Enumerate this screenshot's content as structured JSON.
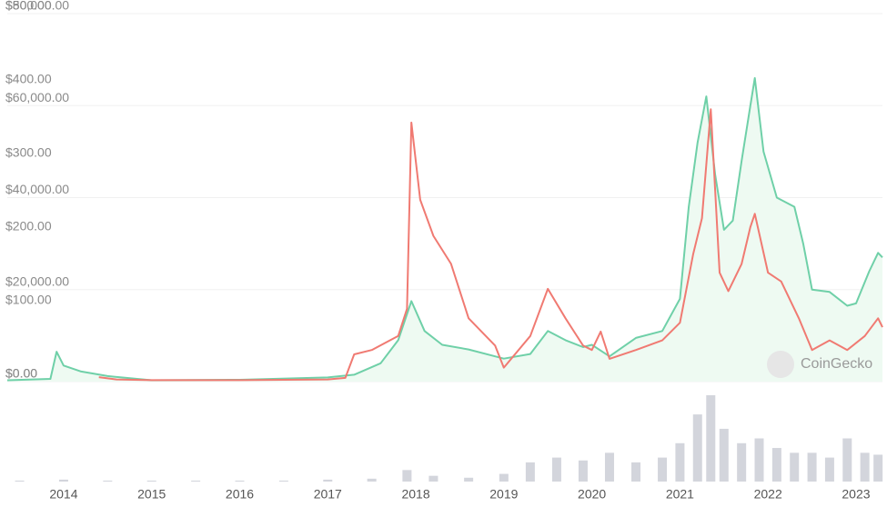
{
  "chart_data": {
    "type": "line",
    "xlim": [
      2013.36,
      2023.3
    ],
    "xticks": [
      2014,
      2015,
      2016,
      2017,
      2018,
      2019,
      2020,
      2021,
      2022,
      2023
    ],
    "ylim": [
      0,
      80000
    ],
    "yticks": [
      {
        "value": 0,
        "label": "$0.00"
      },
      {
        "value": 20000,
        "label": "$20,000.00"
      },
      {
        "value": 40000,
        "label": "$40,000.00"
      },
      {
        "value": 60000,
        "label": "$60,000.00"
      },
      {
        "value": 80000,
        "label": "$80,000.00"
      }
    ],
    "y2lim": [
      0,
      500
    ],
    "y2ticks": [
      {
        "value": 0,
        "label": "$0.00"
      },
      {
        "value": 100,
        "label": "$100.00"
      },
      {
        "value": 200,
        "label": "$200.00"
      },
      {
        "value": 300,
        "label": "$300.00"
      },
      {
        "value": 400,
        "label": "$400.00"
      },
      {
        "value": 500,
        "label": "$500.00"
      }
    ],
    "grid": true,
    "watermark": "CoinGecko",
    "series": [
      {
        "color": "#6fd0a8",
        "fill": "#eefaf2",
        "x": [
          2013.36,
          2013.85,
          2013.92,
          2014.0,
          2014.2,
          2014.5,
          2015,
          2016,
          2017,
          2017.3,
          2017.6,
          2017.8,
          2017.95,
          2018.1,
          2018.3,
          2018.6,
          2018.9,
          2019.0,
          2019.3,
          2019.5,
          2019.7,
          2019.9,
          2020.0,
          2020.2,
          2020.5,
          2020.8,
          2021.0,
          2021.1,
          2021.2,
          2021.3,
          2021.4,
          2021.5,
          2021.6,
          2021.7,
          2021.8,
          2021.85,
          2021.95,
          2022.1,
          2022.3,
          2022.4,
          2022.5,
          2022.7,
          2022.9,
          2023.0,
          2023.15,
          2023.25,
          2023.3
        ],
        "values": [
          300,
          600,
          6500,
          3500,
          2200,
          1200,
          300,
          400,
          900,
          1500,
          4000,
          9000,
          17500,
          11000,
          8000,
          7000,
          5500,
          5000,
          6000,
          11000,
          9000,
          7500,
          8000,
          5500,
          9500,
          11000,
          18000,
          38000,
          52000,
          62000,
          45000,
          33000,
          35000,
          48000,
          60000,
          66000,
          50000,
          40000,
          38000,
          30000,
          20000,
          19500,
          16500,
          17000,
          24000,
          28000,
          27000
        ]
      },
      {
        "color": "#f07a72",
        "axis": "y2",
        "x": [
          2014.4,
          2014.6,
          2015,
          2016,
          2017,
          2017.2,
          2017.3,
          2017.5,
          2017.8,
          2017.9,
          2017.95,
          2018.05,
          2018.2,
          2018.4,
          2018.6,
          2018.9,
          2019.0,
          2019.3,
          2019.5,
          2019.7,
          2019.9,
          2020.0,
          2020.1,
          2020.2,
          2020.5,
          2020.8,
          2021.0,
          2021.15,
          2021.25,
          2021.35,
          2021.45,
          2021.55,
          2021.7,
          2021.8,
          2021.85,
          2022.0,
          2022.15,
          2022.35,
          2022.5,
          2022.7,
          2022.9,
          2023.1,
          2023.25,
          2023.3
        ],
        "values": [
          6,
          3,
          2,
          2,
          3,
          5,
          37,
          43,
          62,
          99,
          352,
          247,
          198,
          160,
          86,
          49,
          19,
          62,
          126,
          86,
          49,
          43,
          68,
          31,
          43,
          56,
          80,
          173,
          222,
          370,
          148,
          123,
          160,
          210,
          228,
          148,
          136,
          86,
          43,
          56,
          43,
          62,
          86,
          74
        ]
      }
    ],
    "volume": {
      "color": "#d3d5dc",
      "x": [
        2013.5,
        2014.0,
        2014.5,
        2015.0,
        2015.5,
        2016.0,
        2016.5,
        2017.0,
        2017.5,
        2017.9,
        2018.2,
        2018.6,
        2019.0,
        2019.3,
        2019.6,
        2019.9,
        2020.2,
        2020.5,
        2020.8,
        2021.0,
        2021.2,
        2021.35,
        2021.5,
        2021.7,
        2021.9,
        2022.1,
        2022.3,
        2022.5,
        2022.7,
        2022.9,
        2023.1,
        2023.25
      ],
      "values": [
        1,
        2,
        1,
        1,
        1,
        1,
        1,
        2,
        3,
        12,
        6,
        4,
        8,
        20,
        25,
        22,
        30,
        20,
        25,
        40,
        70,
        90,
        55,
        40,
        45,
        35,
        30,
        30,
        25,
        45,
        30,
        28
      ]
    }
  }
}
